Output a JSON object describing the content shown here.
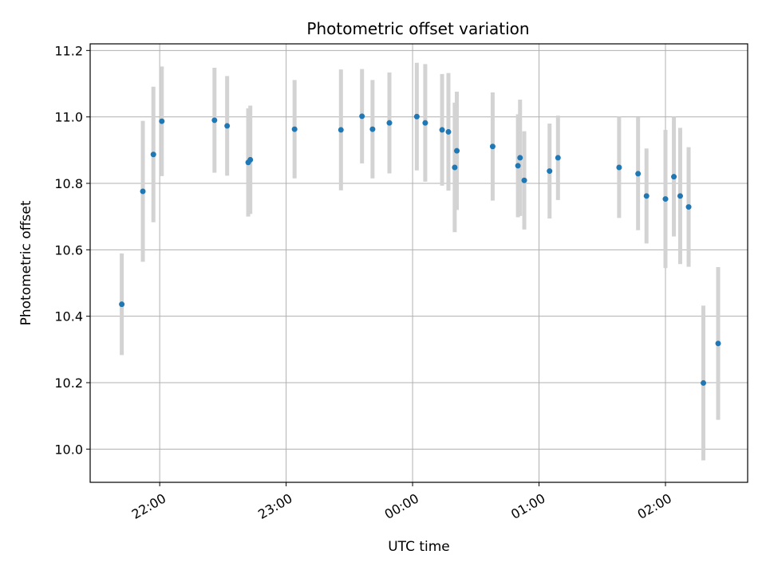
{
  "chart_data": {
    "type": "scatter",
    "title": "Photometric offset variation",
    "xlabel": "UTC time",
    "ylabel": "Photometric offset",
    "grid": true,
    "xlim": [
      "21:27",
      "02:39"
    ],
    "ylim": [
      9.9,
      11.22
    ],
    "x_ticks": [
      "22:00",
      "23:00",
      "00:00",
      "01:00",
      "02:00"
    ],
    "y_ticks": [
      "10.0",
      "10.2",
      "10.4",
      "10.6",
      "10.8",
      "11.0",
      "11.2"
    ],
    "point_color": "#1f77b4",
    "errorbar_color": "#d3d3d3",
    "points": [
      {
        "time": "21:42",
        "y": 10.436,
        "err": 0.153
      },
      {
        "time": "21:52",
        "y": 10.776,
        "err": 0.212
      },
      {
        "time": "21:57",
        "y": 10.887,
        "err": 0.204
      },
      {
        "time": "22:01",
        "y": 10.987,
        "err": 0.165
      },
      {
        "time": "22:26",
        "y": 10.99,
        "err": 0.158
      },
      {
        "time": "22:32",
        "y": 10.973,
        "err": 0.15
      },
      {
        "time": "22:42",
        "y": 10.863,
        "err": 0.163
      },
      {
        "time": "22:43",
        "y": 10.871,
        "err": 0.163
      },
      {
        "time": "23:04",
        "y": 10.963,
        "err": 0.148
      },
      {
        "time": "23:26",
        "y": 10.961,
        "err": 0.182
      },
      {
        "time": "23:36",
        "y": 11.002,
        "err": 0.142
      },
      {
        "time": "23:41",
        "y": 10.963,
        "err": 0.148
      },
      {
        "time": "23:49",
        "y": 10.982,
        "err": 0.152
      },
      {
        "time": "00:02",
        "y": 11.001,
        "err": 0.162
      },
      {
        "time": "00:06",
        "y": 10.982,
        "err": 0.177
      },
      {
        "time": "00:14",
        "y": 10.961,
        "err": 0.168
      },
      {
        "time": "00:17",
        "y": 10.955,
        "err": 0.177
      },
      {
        "time": "00:20",
        "y": 10.848,
        "err": 0.195
      },
      {
        "time": "00:21",
        "y": 10.898,
        "err": 0.178
      },
      {
        "time": "00:38",
        "y": 10.911,
        "err": 0.163
      },
      {
        "time": "00:50",
        "y": 10.853,
        "err": 0.155
      },
      {
        "time": "00:51",
        "y": 10.877,
        "err": 0.175
      },
      {
        "time": "00:53",
        "y": 10.809,
        "err": 0.148
      },
      {
        "time": "01:05",
        "y": 10.837,
        "err": 0.143
      },
      {
        "time": "01:09",
        "y": 10.877,
        "err": 0.127
      },
      {
        "time": "01:38",
        "y": 10.848,
        "err": 0.152
      },
      {
        "time": "01:47",
        "y": 10.829,
        "err": 0.17
      },
      {
        "time": "01:51",
        "y": 10.762,
        "err": 0.143
      },
      {
        "time": "02:00",
        "y": 10.753,
        "err": 0.208
      },
      {
        "time": "02:04",
        "y": 10.82,
        "err": 0.18
      },
      {
        "time": "02:07",
        "y": 10.762,
        "err": 0.205
      },
      {
        "time": "02:11",
        "y": 10.729,
        "err": 0.18
      },
      {
        "time": "02:18",
        "y": 10.199,
        "err": 0.233
      },
      {
        "time": "02:25",
        "y": 10.318,
        "err": 0.23
      }
    ]
  }
}
